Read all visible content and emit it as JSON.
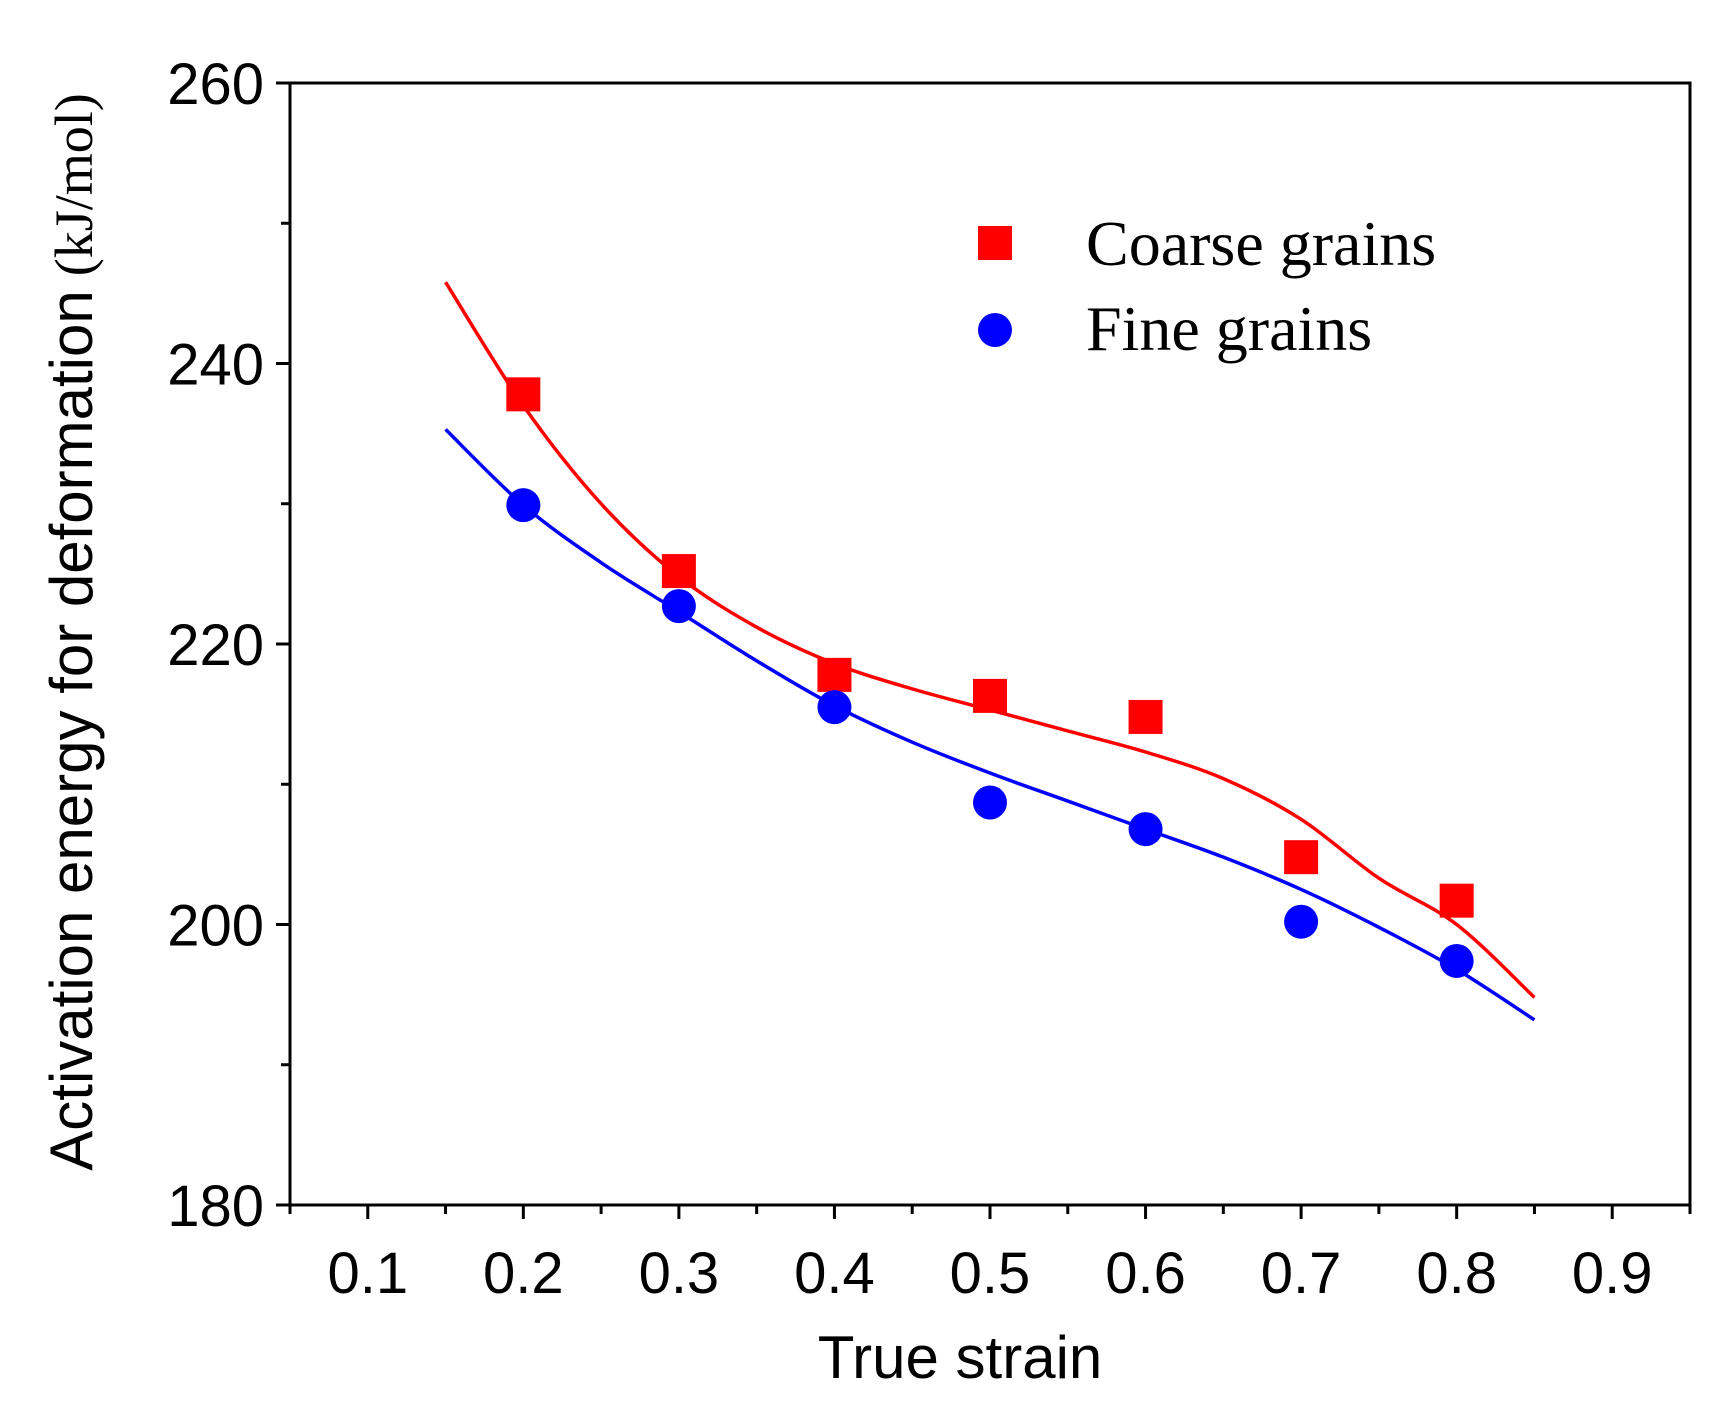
{
  "chart_data": {
    "type": "scatter",
    "title": "",
    "xlabel": "True strain",
    "ylabel": "Activation energy for deformation",
    "ylabel_unit": "(kJ/mol)",
    "xlim": [
      0.05,
      0.95
    ],
    "ylim": [
      180,
      260
    ],
    "xticks": [
      0.1,
      0.2,
      0.3,
      0.4,
      0.5,
      0.6,
      0.7,
      0.8,
      0.9
    ],
    "xtick_labels": [
      "0.1",
      "0.2",
      "0.3",
      "0.4",
      "0.5",
      "0.6",
      "0.7",
      "0.8",
      "0.9"
    ],
    "yticks": [
      180,
      200,
      220,
      240,
      260
    ],
    "ytick_labels": [
      "180",
      "200",
      "220",
      "240",
      "260"
    ],
    "grid": false,
    "legend_position": "top-right",
    "series": [
      {
        "name": "Coarse grains",
        "marker": "square",
        "color": "#ff0000",
        "x": [
          0.2,
          0.3,
          0.4,
          0.5,
          0.6,
          0.7,
          0.8
        ],
        "y": [
          237.8,
          225.2,
          217.8,
          216.3,
          214.8,
          204.8,
          201.7
        ],
        "fit": {
          "x": [
            0.15,
            0.2,
            0.25,
            0.3,
            0.35,
            0.4,
            0.45,
            0.5,
            0.55,
            0.6,
            0.65,
            0.7,
            0.75,
            0.8,
            0.85
          ],
          "y": [
            245.8,
            237.0,
            230.0,
            224.8,
            221.2,
            218.6,
            216.8,
            215.3,
            213.8,
            212.3,
            210.4,
            207.5,
            203.3,
            200.0,
            194.8
          ]
        }
      },
      {
        "name": "Fine grains",
        "marker": "circle",
        "color": "#0000ff",
        "x": [
          0.2,
          0.3,
          0.4,
          0.5,
          0.6,
          0.7,
          0.8
        ],
        "y": [
          229.9,
          222.7,
          215.5,
          208.7,
          206.8,
          200.2,
          197.4
        ],
        "fit": {
          "x": [
            0.15,
            0.2,
            0.25,
            0.3,
            0.35,
            0.4,
            0.45,
            0.5,
            0.55,
            0.6,
            0.65,
            0.7,
            0.75,
            0.8,
            0.85
          ],
          "y": [
            235.3,
            229.9,
            225.8,
            222.3,
            218.8,
            215.6,
            213.0,
            210.8,
            208.8,
            206.8,
            204.8,
            202.5,
            199.8,
            196.8,
            193.2
          ]
        }
      }
    ]
  }
}
